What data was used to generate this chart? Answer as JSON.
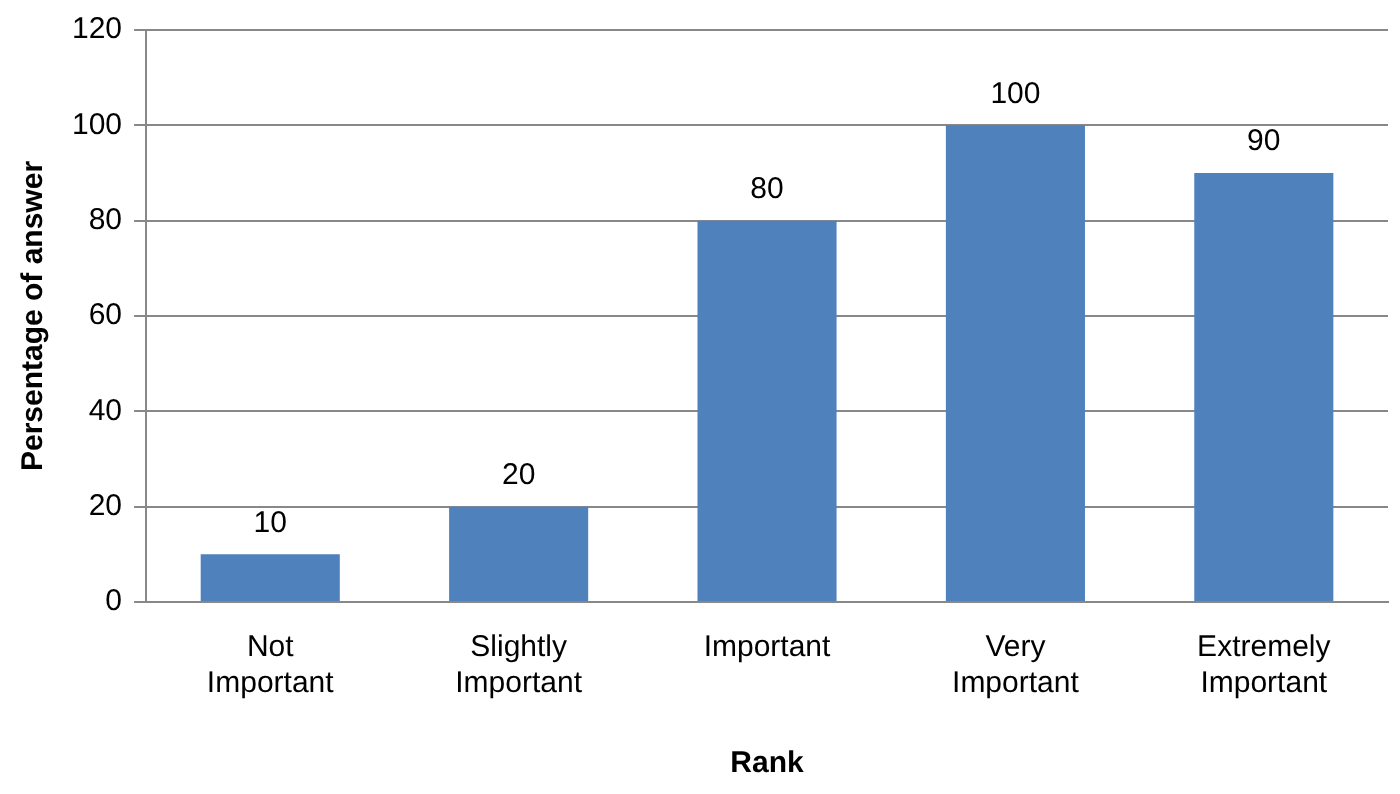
{
  "chart_data": {
    "type": "bar",
    "xlabel": "Rank",
    "ylabel": "Persentage of answer",
    "categories": [
      "Not Important",
      "Slightly Important",
      "Important",
      "Very Important",
      "Extremely Important"
    ],
    "values": [
      10,
      20,
      80,
      100,
      90
    ],
    "color": "#4f81bd",
    "ylim": [
      0,
      120
    ],
    "yticks": [
      0,
      20,
      40,
      60,
      80,
      100,
      120
    ],
    "grid": "y",
    "data_labels": true
  }
}
